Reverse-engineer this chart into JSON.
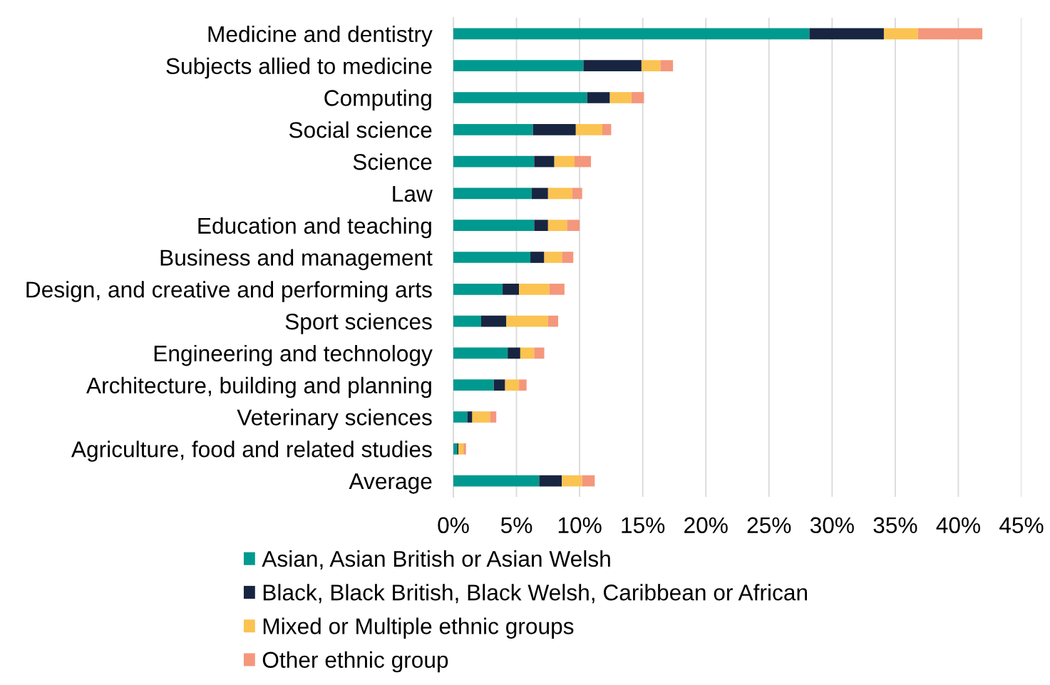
{
  "chart_data": {
    "type": "bar",
    "orientation": "horizontal",
    "stacked": true,
    "categories": [
      "Medicine and dentistry",
      "Subjects allied to medicine",
      "Computing",
      "Social science",
      "Science",
      "Law",
      "Education and teaching",
      "Business and management",
      "Design, and creative and performing arts",
      "Sport sciences",
      "Engineering and technology",
      "Architecture, building and planning",
      "Veterinary sciences",
      "Agriculture, food and related studies",
      "Average"
    ],
    "series": [
      {
        "name": "Asian, Asian British or Asian Welsh",
        "color": "#00998f",
        "values": [
          28.2,
          10.3,
          10.6,
          6.3,
          6.4,
          6.2,
          6.4,
          6.1,
          3.9,
          2.2,
          4.3,
          3.2,
          1.1,
          0.3,
          6.8
        ]
      },
      {
        "name": "Black, Black British, Black Welsh, Caribbean or African",
        "color": "#182541",
        "values": [
          5.9,
          4.6,
          1.8,
          3.4,
          1.6,
          1.3,
          1.1,
          1.1,
          1.3,
          2.0,
          1.0,
          0.9,
          0.4,
          0.1,
          1.8
        ]
      },
      {
        "name": "Mixed or Multiple ethnic groups",
        "color": "#fbc351",
        "values": [
          2.7,
          1.5,
          1.7,
          2.1,
          1.6,
          1.9,
          1.5,
          1.4,
          2.4,
          3.3,
          1.1,
          1.1,
          1.4,
          0.4,
          1.6
        ]
      },
      {
        "name": "Other ethnic group",
        "color": "#f4977c",
        "values": [
          5.1,
          1.0,
          1.0,
          0.7,
          1.3,
          0.8,
          1.0,
          0.9,
          1.2,
          0.8,
          0.8,
          0.6,
          0.5,
          0.2,
          1.0
        ]
      }
    ],
    "xlim": [
      0,
      45
    ],
    "xticks": [
      {
        "value": 0,
        "label": "0%"
      },
      {
        "value": 5,
        "label": "5%"
      },
      {
        "value": 10,
        "label": "10%"
      },
      {
        "value": 15,
        "label": "15%"
      },
      {
        "value": 20,
        "label": "20%"
      },
      {
        "value": 25,
        "label": "25%"
      },
      {
        "value": 30,
        "label": "30%"
      },
      {
        "value": 35,
        "label": "35%"
      },
      {
        "value": 40,
        "label": "40%"
      },
      {
        "value": 45,
        "label": "45%"
      }
    ],
    "grid": "x",
    "legend": "bottom"
  }
}
